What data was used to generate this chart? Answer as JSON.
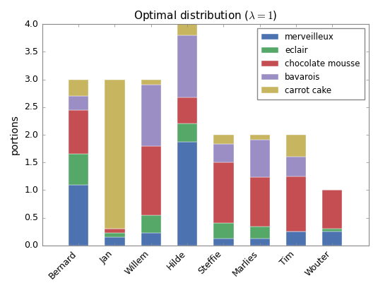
{
  "title": "Optimal distribution ($\\lambda=1$)",
  "ylabel": "portions",
  "categories": [
    "Bernard",
    "Jan",
    "Willem",
    "Hilde",
    "Steffie",
    "Marlies",
    "Tim",
    "Wouter"
  ],
  "series_order": [
    "merveilleux",
    "eclair",
    "chocolate mousse",
    "bavarois",
    "carrot cake"
  ],
  "series": {
    "merveilleux": [
      1.1,
      0.15,
      0.23,
      1.87,
      0.12,
      0.12,
      0.25,
      0.25
    ],
    "eclair": [
      0.55,
      0.08,
      0.32,
      0.33,
      0.28,
      0.22,
      0.0,
      0.05
    ],
    "chocolate mousse": [
      0.8,
      0.07,
      1.25,
      0.48,
      1.1,
      0.9,
      1.0,
      0.7
    ],
    "bavarois": [
      0.25,
      0.0,
      1.1,
      1.12,
      0.33,
      0.67,
      0.35,
      0.0
    ],
    "carrot cake": [
      0.3,
      2.7,
      0.1,
      0.2,
      0.17,
      0.09,
      0.4,
      0.0
    ]
  },
  "colors": {
    "merveilleux": "#4c72b0",
    "eclair": "#55a868",
    "chocolate mousse": "#c44e52",
    "bavarois": "#9b8ec4",
    "carrot cake": "#c8b560"
  },
  "ylim": [
    0,
    4.0
  ],
  "yticks": [
    0.0,
    0.5,
    1.0,
    1.5,
    2.0,
    2.5,
    3.0,
    3.5,
    4.0
  ],
  "figsize": [
    5.35,
    4.11
  ],
  "dpi": 100,
  "bar_width": 0.55
}
